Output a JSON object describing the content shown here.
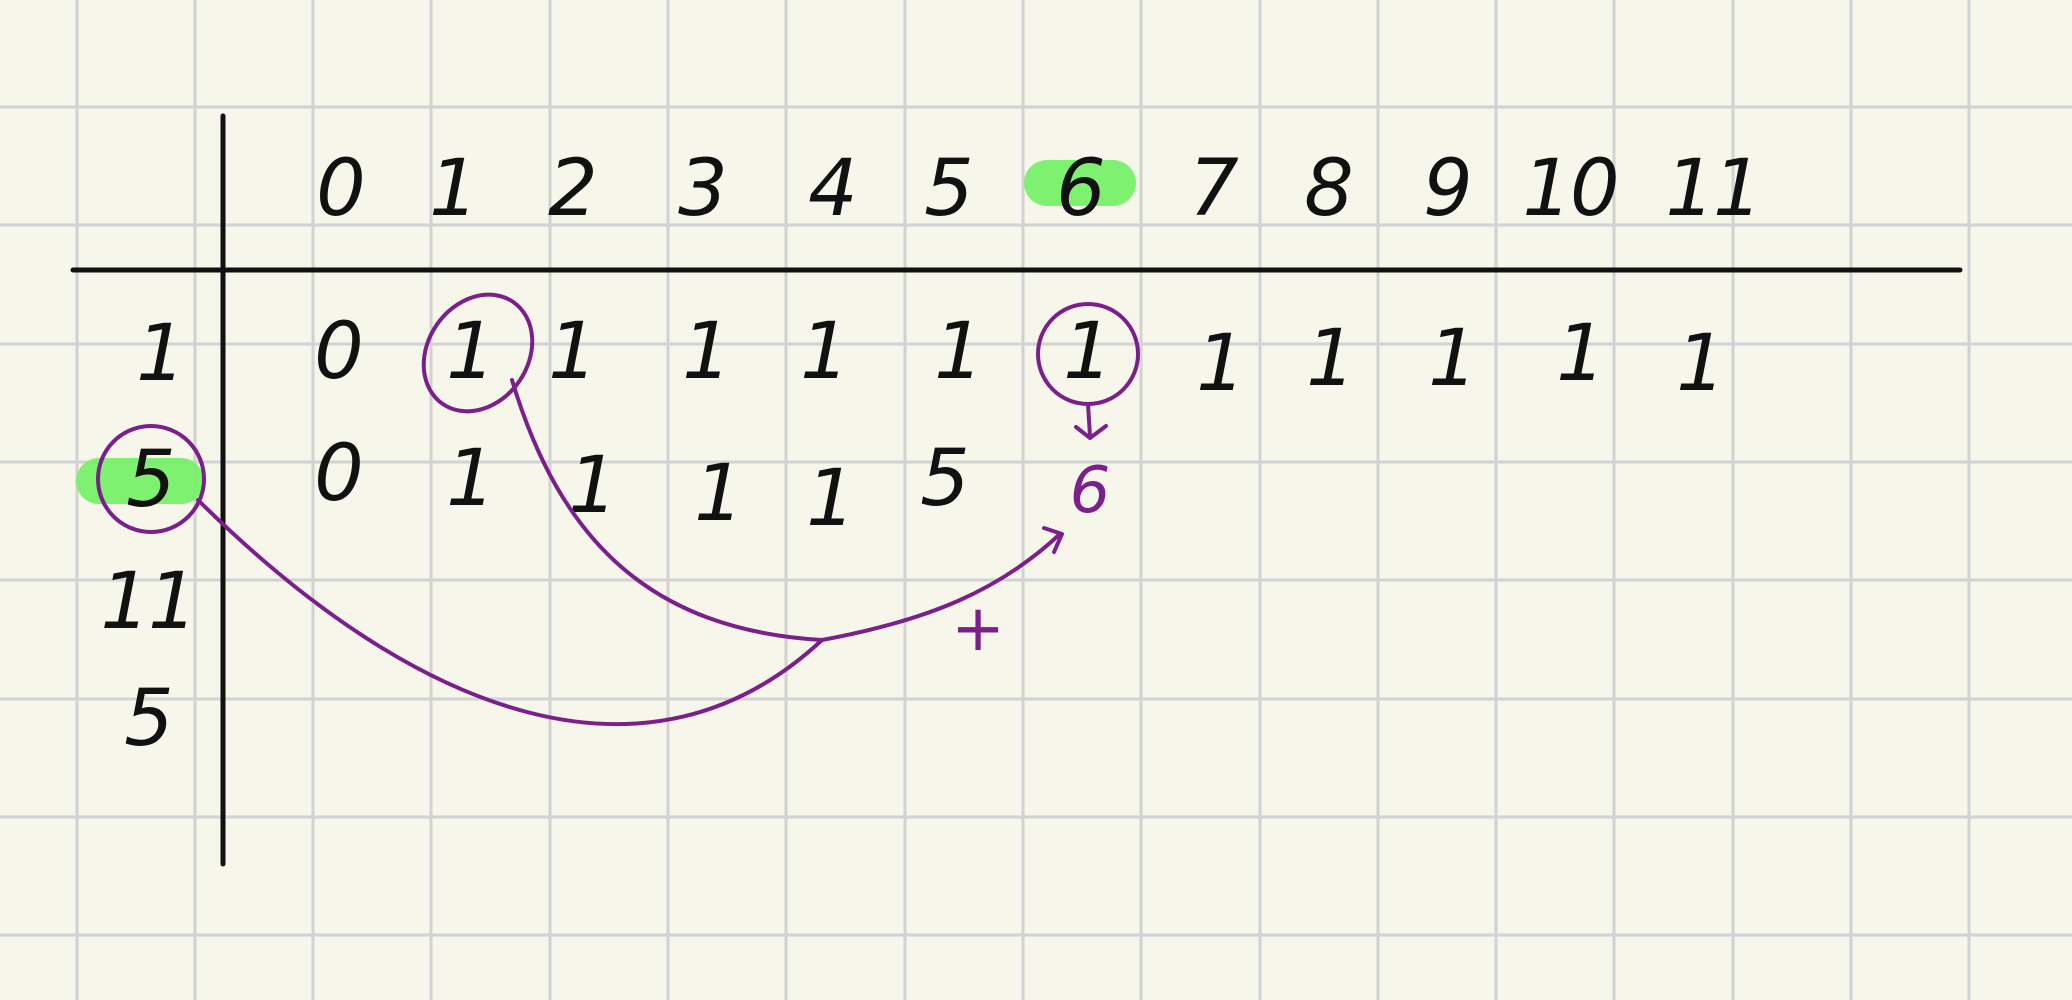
{
  "canvas": {
    "background": "#f7f6ea",
    "grid_color": "#d2d2d2",
    "ink_color": "#111111",
    "annotation_color": "#7b1f8c",
    "highlight_color": "#78f06a"
  },
  "table": {
    "column_headers": [
      "0",
      "1",
      "2",
      "3",
      "4",
      "5",
      "6",
      "7",
      "8",
      "9",
      "10",
      "11"
    ],
    "row_labels": [
      "1",
      "5",
      "11",
      "5"
    ],
    "rows": [
      [
        "0",
        "1",
        "1",
        "1",
        "1",
        "1",
        "1",
        "1",
        "1",
        "1",
        "1",
        "1"
      ],
      [
        "0",
        "1",
        "1",
        "1",
        "1",
        "5",
        "6"
      ]
    ]
  },
  "annotations": {
    "plus_sign": "+",
    "highlighted_column_header": "6",
    "highlighted_row_label": "5"
  }
}
